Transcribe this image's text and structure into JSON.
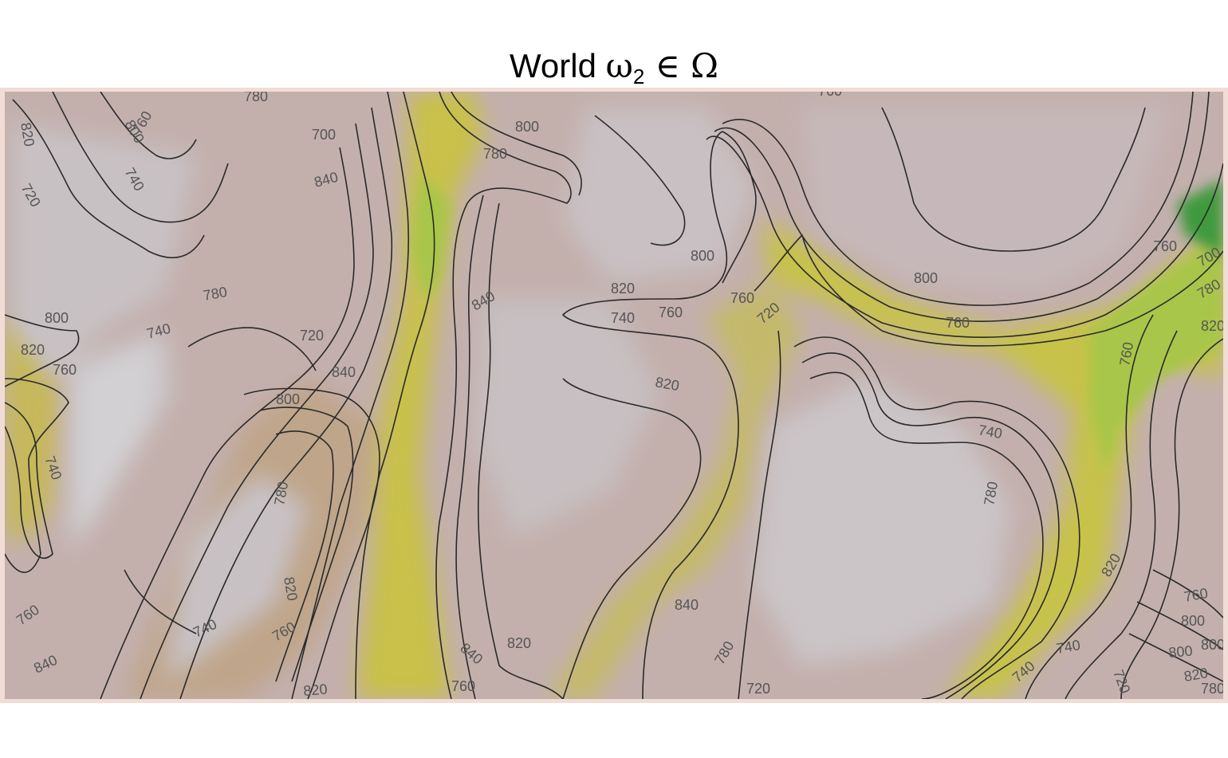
{
  "title": {
    "prefix": "World ",
    "omega": "ω",
    "subscript": "2",
    "relation": " ∈ ",
    "set": "Ω"
  },
  "map": {
    "colors": {
      "plateau": "#c7b9bb",
      "highland": "#bfa79f",
      "slope": "#b59a82",
      "valley": "#c9c149",
      "low": "#a7c64a",
      "deep": "#3f9a3c",
      "contour": "#2a2a2a",
      "frame": "#f2dcd6"
    },
    "contour_labels": [
      "820",
      "800",
      "780",
      "760",
      "740",
      "720",
      "700",
      "840",
      "780",
      "800",
      "820",
      "760",
      "740",
      "720",
      "840",
      "800",
      "780",
      "820",
      "760",
      "740",
      "760",
      "840",
      "820",
      "800",
      "780",
      "800",
      "820",
      "840",
      "760",
      "740",
      "720",
      "760",
      "820",
      "800",
      "760",
      "740",
      "700",
      "760",
      "780",
      "820",
      "800",
      "760",
      "740",
      "720",
      "800",
      "820",
      "840",
      "820",
      "780",
      "760",
      "720",
      "740",
      "760",
      "780",
      "820",
      "840",
      "800",
      "780",
      "740",
      "760"
    ]
  }
}
